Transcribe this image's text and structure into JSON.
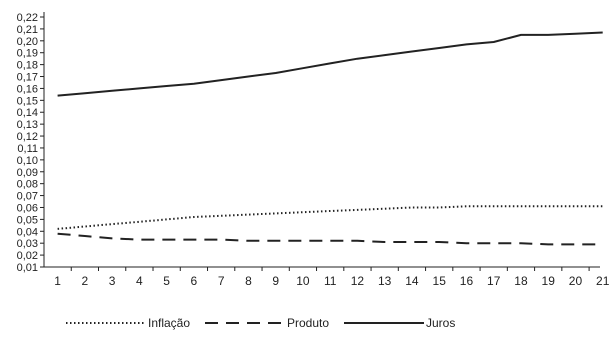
{
  "chart_data": {
    "type": "line",
    "title": "",
    "xlabel": "",
    "ylabel": "",
    "x": [
      1,
      2,
      3,
      4,
      5,
      6,
      7,
      8,
      9,
      10,
      11,
      12,
      13,
      14,
      15,
      16,
      17,
      18,
      19,
      20,
      21
    ],
    "x_tick_labels": [
      "1",
      "2",
      "3",
      "4",
      "5",
      "6",
      "7",
      "8",
      "9",
      "10",
      "11",
      "12",
      "13",
      "14",
      "15",
      "16",
      "17",
      "18",
      "19",
      "20",
      "21"
    ],
    "ylim": [
      0.01,
      0.22
    ],
    "y_ticks": [
      0.01,
      0.02,
      0.03,
      0.04,
      0.05,
      0.06,
      0.07,
      0.08,
      0.09,
      0.1,
      0.11,
      0.12,
      0.13,
      0.14,
      0.15,
      0.16,
      0.17,
      0.18,
      0.19,
      0.2,
      0.21,
      0.22
    ],
    "y_tick_labels": [
      "0,01",
      "0,02",
      "0,03",
      "0,04",
      "0,05",
      "0,06",
      "0,07",
      "0,08",
      "0,09",
      "0,10",
      "0,11",
      "0,12",
      "0,13",
      "0,14",
      "0,15",
      "0,16",
      "0,17",
      "0,18",
      "0,19",
      "0,20",
      "0,21",
      "0,22"
    ],
    "grid": false,
    "legend_position": "bottom",
    "series": [
      {
        "name": "Inflação",
        "style": "dotted",
        "color": "#222222",
        "values": [
          0.042,
          0.044,
          0.046,
          0.048,
          0.05,
          0.052,
          0.053,
          0.054,
          0.055,
          0.056,
          0.057,
          0.058,
          0.059,
          0.06,
          0.06,
          0.061,
          0.061,
          0.061,
          0.061,
          0.061,
          0.061
        ]
      },
      {
        "name": "Produto",
        "style": "dashed",
        "color": "#222222",
        "values": [
          0.038,
          0.036,
          0.034,
          0.033,
          0.033,
          0.033,
          0.033,
          0.032,
          0.032,
          0.032,
          0.032,
          0.032,
          0.031,
          0.031,
          0.031,
          0.03,
          0.03,
          0.03,
          0.029,
          0.029,
          0.029
        ]
      },
      {
        "name": "Juros",
        "style": "solid",
        "color": "#222222",
        "values": [
          0.154,
          0.156,
          0.158,
          0.16,
          0.162,
          0.164,
          0.167,
          0.17,
          0.173,
          0.177,
          0.181,
          0.185,
          0.188,
          0.191,
          0.194,
          0.197,
          0.199,
          0.205,
          0.205,
          0.206,
          0.207
        ]
      }
    ]
  }
}
